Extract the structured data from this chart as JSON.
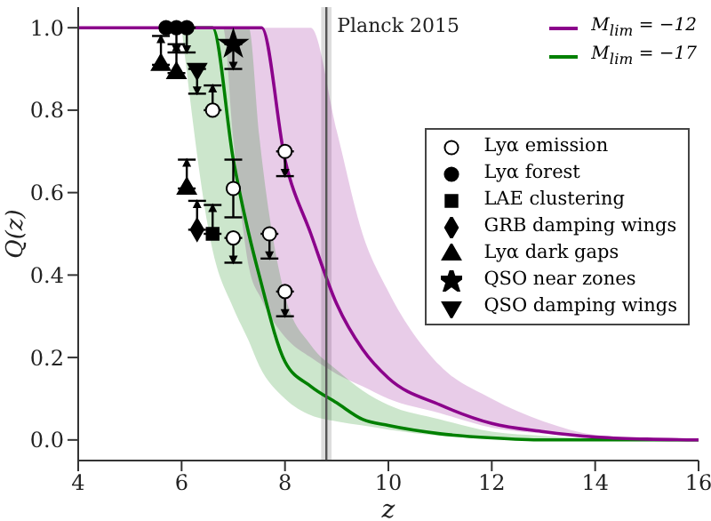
{
  "chart_data": {
    "type": "line",
    "xlabel": "z",
    "ylabel": "Q(z)",
    "xlim": [
      4,
      16
    ],
    "ylim": [
      -0.05,
      1.05
    ],
    "xticks": [
      4,
      6,
      8,
      10,
      12,
      14,
      16
    ],
    "yticks": [
      {
        "value": 0,
        "label": "0.0"
      },
      {
        "value": 0.2,
        "label": "0.2"
      },
      {
        "value": 0.4,
        "label": "0.4"
      },
      {
        "value": 0.6,
        "label": "0.6"
      },
      {
        "value": 0.8,
        "label": "0.8"
      },
      {
        "value": 1,
        "label": "1.0"
      }
    ],
    "legend": "top right",
    "line_style": "solid",
    "ref_lines": [
      {
        "axis": "x",
        "value": 8.8,
        "label": "Planck 2015",
        "color": "#555555"
      }
    ],
    "bands": [
      {
        "axis": "x",
        "from": 8.7,
        "to": 8.9,
        "color": "#bbbbbb"
      }
    ],
    "series": [
      {
        "name": "M$_{lim}$ = −12",
        "color": "#8b008b",
        "x": [
          4,
          5,
          6,
          6.8,
          7,
          7.3,
          7.55,
          8,
          8.5,
          9,
          9.5,
          10,
          11,
          12,
          13,
          14,
          15,
          16
        ],
        "values": [
          1,
          1,
          1,
          1,
          1,
          1,
          1,
          0.68,
          0.5,
          0.33,
          0.22,
          0.15,
          0.085,
          0.04,
          0.02,
          0.007,
          0.002,
          0
        ],
        "lower": [
          1,
          1,
          1,
          1,
          0.73,
          0.42,
          0.34,
          0.25,
          0.2,
          0.16,
          0.13,
          0.1,
          0.065,
          0.03,
          0.015,
          0.005,
          0,
          0
        ],
        "upper": [
          1,
          1,
          1,
          1,
          1,
          1,
          1,
          1,
          1,
          0.75,
          0.5,
          0.36,
          0.18,
          0.1,
          0.045,
          0.012,
          0.003,
          0
        ]
      },
      {
        "name": "M$_{lim}$ = −17",
        "color": "#008000",
        "x": [
          6,
          6.6,
          7,
          7.3,
          7.5,
          8,
          8.5,
          9,
          9.5,
          10,
          11,
          12,
          13,
          14,
          15,
          16
        ],
        "values": [
          1,
          1,
          0.68,
          0.5,
          0.4,
          0.19,
          0.13,
          0.09,
          0.05,
          0.035,
          0.015,
          0.005,
          0,
          0,
          0,
          0
        ],
        "lower": [
          1,
          0.46,
          0.32,
          0.24,
          0.18,
          0.1,
          0.06,
          0.045,
          0.035,
          0.025,
          0.01,
          0.003,
          0,
          0,
          0,
          0
        ],
        "upper": [
          1,
          1,
          1,
          1,
          0.74,
          0.35,
          0.23,
          0.17,
          0.12,
          0.085,
          0.05,
          0.02,
          0.01,
          0.003,
          0,
          0
        ]
      },
      {
        "type": "scatter",
        "name": "Lyα emission",
        "marker": "circle",
        "color": "#ffffff",
        "x": [
          6.6,
          7.0,
          7.0,
          7.7,
          8.0,
          8.0
        ],
        "values": [
          0.8,
          0.61,
          0.49,
          0.5,
          0.7,
          0.36
        ],
        "errors": [
          [
            0.8,
            0.86
          ],
          [
            0.54,
            0.68
          ],
          [
            0.43,
            0.49
          ],
          [
            0.44,
            0.5
          ],
          [
            0.64,
            0.7
          ],
          [
            0.3,
            0.36
          ]
        ]
      },
      {
        "type": "scatter",
        "name": "Lyα forest",
        "marker": "circle",
        "color": "#000000",
        "x": [
          5.7,
          5.9,
          6.1
        ],
        "values": [
          1,
          1,
          1
        ],
        "errors": [
          null,
          [
            0.94,
            1
          ],
          [
            0.94,
            1
          ]
        ]
      },
      {
        "type": "scatter",
        "name": "LAE clustering",
        "marker": "square",
        "color": "#000000",
        "x": [
          6.6
        ],
        "values": [
          0.5
        ],
        "errors": [
          [
            0.5,
            0.57
          ]
        ]
      },
      {
        "type": "scatter",
        "name": "GRB damping wings",
        "marker": "diamond",
        "color": "#000000",
        "x": [
          6.3
        ],
        "values": [
          0.51
        ],
        "errors": [
          [
            0.51,
            0.58
          ]
        ]
      },
      {
        "type": "scatter",
        "name": "Lyα dark gaps",
        "marker": "triangle",
        "color": "#000000",
        "x": [
          5.6,
          5.9,
          6.1
        ],
        "values": [
          0.91,
          0.89,
          0.61
        ],
        "errors": [
          [
            0.91,
            0.98
          ],
          [
            0.89,
            0.96
          ],
          [
            0.61,
            0.68
          ]
        ]
      },
      {
        "type": "scatter",
        "name": "QSO near zones",
        "marker": "star",
        "color": "#000000",
        "x": [
          7.0
        ],
        "values": [
          0.96
        ],
        "errors": [
          [
            0.9,
            0.96
          ]
        ]
      },
      {
        "type": "scatter",
        "name": "QSO damping wings",
        "marker": "triangle-down",
        "color": "#000000",
        "x": [
          6.3
        ],
        "values": [
          0.9
        ],
        "errors": [
          [
            0.84,
            0.9
          ]
        ]
      }
    ]
  }
}
